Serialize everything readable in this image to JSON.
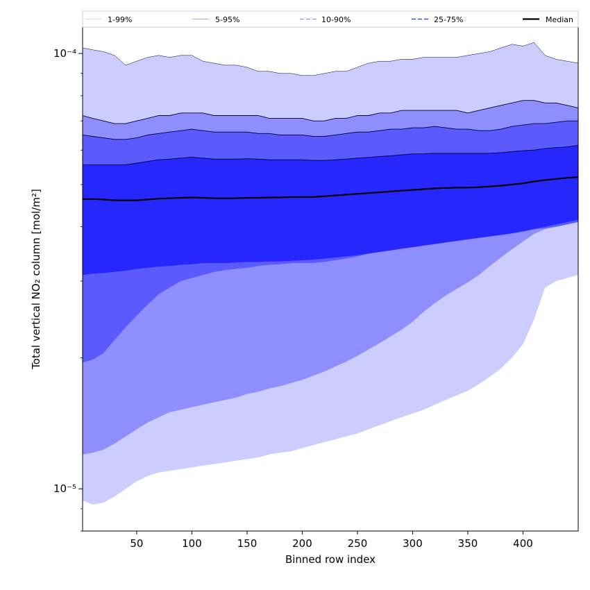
{
  "chart_data": {
    "type": "area",
    "xlabel": "Binned row index",
    "ylabel": "Total vertical NO₂ column [mol/m²]",
    "xlim": [
      1,
      450
    ],
    "ylim": [
      8e-06,
      0.000115
    ],
    "yscale": "log",
    "grid": false,
    "legend_position": "top",
    "x_ticks": [
      50,
      100,
      150,
      200,
      250,
      300,
      350,
      400
    ],
    "x_tick_labels": [
      "50",
      "100",
      "150",
      "200",
      "250",
      "300",
      "350",
      "400"
    ],
    "y_ticks": [
      1e-05,
      0.0001
    ],
    "y_tick_labels": [
      "10⁻⁵",
      "10⁻⁴"
    ],
    "legend": [
      "1-99%",
      "5-95%",
      "10-90%",
      "25-75%",
      "Median"
    ],
    "band_colors": [
      "#ccccff",
      "#8e8eff",
      "#5a5aff",
      "#2626ff"
    ],
    "median_color": "#000000",
    "x": [
      1,
      10,
      20,
      30,
      40,
      50,
      60,
      70,
      80,
      90,
      100,
      110,
      120,
      130,
      140,
      150,
      160,
      170,
      180,
      190,
      200,
      210,
      220,
      230,
      240,
      250,
      260,
      270,
      280,
      290,
      300,
      310,
      320,
      330,
      340,
      350,
      360,
      370,
      380,
      390,
      400,
      410,
      420,
      430,
      440,
      450
    ],
    "series": [
      {
        "name": "1-99%",
        "lower": [
          9.4e-06,
          9.2e-06,
          9.3e-06,
          9.6e-06,
          1e-05,
          1.04e-05,
          1.07e-05,
          1.09e-05,
          1.1e-05,
          1.11e-05,
          1.12e-05,
          1.13e-05,
          1.14e-05,
          1.15e-05,
          1.16e-05,
          1.17e-05,
          1.18e-05,
          1.2e-05,
          1.21e-05,
          1.22e-05,
          1.24e-05,
          1.26e-05,
          1.28e-05,
          1.3e-05,
          1.32e-05,
          1.34e-05,
          1.37e-05,
          1.4e-05,
          1.43e-05,
          1.46e-05,
          1.49e-05,
          1.52e-05,
          1.56e-05,
          1.6e-05,
          1.64e-05,
          1.68e-05,
          1.74e-05,
          1.81e-05,
          1.89e-05,
          2e-05,
          2.15e-05,
          2.45e-05,
          2.9e-05,
          3e-05,
          3.05e-05,
          3.1e-05
        ],
        "upper": [
          0.000103,
          0.000102,
          0.000101,
          9.9e-05,
          9.4e-05,
          9.6e-05,
          9.8e-05,
          9.9e-05,
          9.8e-05,
          9.9e-05,
          9.9e-05,
          9.6e-05,
          9.5e-05,
          9.4e-05,
          9.4e-05,
          9.3e-05,
          9.1e-05,
          9.1e-05,
          9e-05,
          9e-05,
          8.9e-05,
          8.9e-05,
          9e-05,
          9.1e-05,
          9.1e-05,
          9.3e-05,
          9.5e-05,
          9.6e-05,
          9.6e-05,
          9.7e-05,
          9.7e-05,
          9.8e-05,
          9.8e-05,
          9.8e-05,
          9.8e-05,
          9.9e-05,
          0.0001,
          0.000101,
          0.000103,
          0.000105,
          0.000104,
          0.000106,
          9.9e-05,
          9.7e-05,
          9.6e-05,
          9.5e-05
        ]
      },
      {
        "name": "5-95%",
        "lower": [
          1.2e-05,
          1.21e-05,
          1.23e-05,
          1.27e-05,
          1.32e-05,
          1.37e-05,
          1.42e-05,
          1.46e-05,
          1.5e-05,
          1.52e-05,
          1.54e-05,
          1.56e-05,
          1.58e-05,
          1.6e-05,
          1.62e-05,
          1.65e-05,
          1.67e-05,
          1.7e-05,
          1.72e-05,
          1.75e-05,
          1.78e-05,
          1.82e-05,
          1.86e-05,
          1.91e-05,
          1.96e-05,
          2.02e-05,
          2.09e-05,
          2.16e-05,
          2.24e-05,
          2.32e-05,
          2.42e-05,
          2.55e-05,
          2.67e-05,
          2.78e-05,
          2.88e-05,
          2.98e-05,
          3.1e-05,
          3.25e-05,
          3.4e-05,
          3.55e-05,
          3.7e-05,
          3.85e-05,
          3.95e-05,
          4e-05,
          4.05e-05,
          4.1e-05
        ],
        "upper": [
          7.2e-05,
          7.1e-05,
          7e-05,
          6.9e-05,
          6.9e-05,
          7e-05,
          7.1e-05,
          7.2e-05,
          7.2e-05,
          7.3e-05,
          7.3e-05,
          7.3e-05,
          7.2e-05,
          7.2e-05,
          7.2e-05,
          7.2e-05,
          7.2e-05,
          7.1e-05,
          7.1e-05,
          7.1e-05,
          7.1e-05,
          7e-05,
          7e-05,
          7.1e-05,
          7.1e-05,
          7.2e-05,
          7.2e-05,
          7.3e-05,
          7.3e-05,
          7.4e-05,
          7.4e-05,
          7.4e-05,
          7.4e-05,
          7.4e-05,
          7.4e-05,
          7.3e-05,
          7.4e-05,
          7.5e-05,
          7.6e-05,
          7.7e-05,
          7.8e-05,
          7.8e-05,
          7.7e-05,
          7.7e-05,
          7.6e-05,
          7.5e-05
        ]
      },
      {
        "name": "10-90%",
        "lower": [
          1.95e-05,
          1.98e-05,
          2.05e-05,
          2.2e-05,
          2.35e-05,
          2.5e-05,
          2.65e-05,
          2.8e-05,
          2.9e-05,
          3e-05,
          3.05e-05,
          3.1e-05,
          3.15e-05,
          3.18e-05,
          3.2e-05,
          3.22e-05,
          3.25e-05,
          3.27e-05,
          3.28e-05,
          3.3e-05,
          3.3e-05,
          3.3e-05,
          3.32e-05,
          3.35e-05,
          3.38e-05,
          3.42e-05,
          3.47e-05,
          3.52e-05,
          3.57e-05,
          3.6e-05,
          3.63e-05,
          3.67e-05,
          3.71e-05,
          3.74e-05,
          3.77e-05,
          3.8e-05,
          3.82e-05,
          3.85e-05,
          3.88e-05,
          3.9e-05,
          3.93e-05,
          3.95e-05,
          3.97e-05,
          4e-05,
          4.05e-05,
          4.1e-05
        ],
        "upper": [
          6.5e-05,
          6.45e-05,
          6.4e-05,
          6.35e-05,
          6.35e-05,
          6.4e-05,
          6.5e-05,
          6.55e-05,
          6.6e-05,
          6.65e-05,
          6.7e-05,
          6.65e-05,
          6.6e-05,
          6.6e-05,
          6.6e-05,
          6.6e-05,
          6.55e-05,
          6.55e-05,
          6.5e-05,
          6.5e-05,
          6.5e-05,
          6.45e-05,
          6.45e-05,
          6.5e-05,
          6.55e-05,
          6.6e-05,
          6.6e-05,
          6.65e-05,
          6.7e-05,
          6.7e-05,
          6.75e-05,
          6.75e-05,
          6.8e-05,
          6.75e-05,
          6.7e-05,
          6.7e-05,
          6.65e-05,
          6.65e-05,
          6.7e-05,
          6.8e-05,
          6.85e-05,
          6.9e-05,
          6.9e-05,
          6.95e-05,
          7e-05,
          7e-05
        ]
      },
      {
        "name": "25-75%",
        "lower": [
          3.1e-05,
          3.12e-05,
          3.13e-05,
          3.15e-05,
          3.17e-05,
          3.2e-05,
          3.22e-05,
          3.24e-05,
          3.25e-05,
          3.27e-05,
          3.28e-05,
          3.3e-05,
          3.3e-05,
          3.3e-05,
          3.31e-05,
          3.32e-05,
          3.32e-05,
          3.33e-05,
          3.33e-05,
          3.34e-05,
          3.35e-05,
          3.36e-05,
          3.38e-05,
          3.4e-05,
          3.42e-05,
          3.44e-05,
          3.47e-05,
          3.5e-05,
          3.53e-05,
          3.56e-05,
          3.59e-05,
          3.62e-05,
          3.65e-05,
          3.68e-05,
          3.71e-05,
          3.74e-05,
          3.77e-05,
          3.8e-05,
          3.83e-05,
          3.86e-05,
          3.9e-05,
          3.95e-05,
          4e-05,
          4.05e-05,
          4.1e-05,
          4.15e-05
        ],
        "upper": [
          5.55e-05,
          5.55e-05,
          5.55e-05,
          5.55e-05,
          5.55e-05,
          5.6e-05,
          5.65e-05,
          5.7e-05,
          5.72e-05,
          5.75e-05,
          5.78e-05,
          5.75e-05,
          5.72e-05,
          5.72e-05,
          5.72e-05,
          5.73e-05,
          5.72e-05,
          5.7e-05,
          5.7e-05,
          5.7e-05,
          5.7e-05,
          5.68e-05,
          5.68e-05,
          5.7e-05,
          5.72e-05,
          5.75e-05,
          5.77e-05,
          5.8e-05,
          5.82e-05,
          5.85e-05,
          5.88e-05,
          5.88e-05,
          5.9e-05,
          5.9e-05,
          5.9e-05,
          5.9e-05,
          5.9e-05,
          5.9e-05,
          5.92e-05,
          5.95e-05,
          5.98e-05,
          6e-05,
          6.05e-05,
          6.08e-05,
          6.1e-05,
          6.15e-05
        ]
      },
      {
        "name": "Median",
        "values": [
          4.63e-05,
          4.63e-05,
          4.62e-05,
          4.6e-05,
          4.6e-05,
          4.6e-05,
          4.62e-05,
          4.64e-05,
          4.65e-05,
          4.66e-05,
          4.67e-05,
          4.66e-05,
          4.65e-05,
          4.65e-05,
          4.65e-05,
          4.66e-05,
          4.66e-05,
          4.67e-05,
          4.67e-05,
          4.68e-05,
          4.68e-05,
          4.68e-05,
          4.7e-05,
          4.72e-05,
          4.74e-05,
          4.76e-05,
          4.78e-05,
          4.8e-05,
          4.82e-05,
          4.84e-05,
          4.86e-05,
          4.88e-05,
          4.9e-05,
          4.91e-05,
          4.92e-05,
          4.92e-05,
          4.93e-05,
          4.95e-05,
          4.97e-05,
          5e-05,
          5.03e-05,
          5.08e-05,
          5.12e-05,
          5.15e-05,
          5.18e-05,
          5.2e-05
        ]
      }
    ]
  }
}
